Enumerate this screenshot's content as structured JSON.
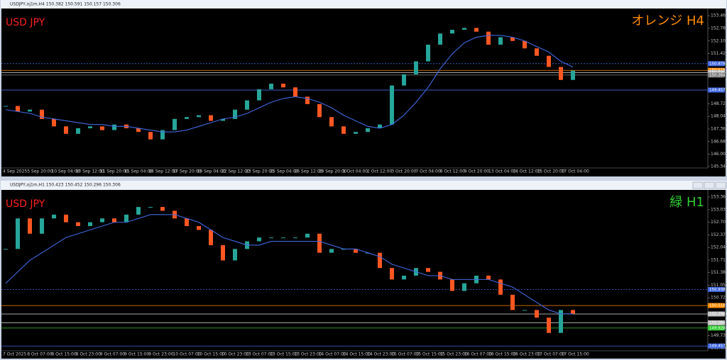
{
  "chart_data": [
    {
      "type": "candlestick",
      "title": "USDJPY,oj1m,H4  150.382 150.591 150.157 150.306",
      "symbol_label": "USD JPY",
      "timeframe_label": "オレンジ H4",
      "timeframe_color": "#ff8c00",
      "up_color": "#26a69a",
      "down_color": "#ff5722",
      "ma_color": "#4169e1",
      "time_labels": [
        "4 Sep 2025",
        "5 Sep 20:00",
        "10 Sep 04:00",
        "10 Sep 12:00",
        "11 Sep 20:00",
        "15 Sep 04:00",
        "16 Sep 12:00",
        "17 Sep 20:00",
        "19 Sep 04:00",
        "22 Sep 12:00",
        "23 Sep 20:00",
        "25 Sep 04:00",
        "26 Sep 12:00",
        "29 Sep 20:00",
        "1 Oct 04:00",
        "2 Oct 12:00",
        "3 Oct 20:00",
        "7 Oct 04:00",
        "8 Oct 12:00",
        "9 Oct 20:00",
        "13 Oct 04:00",
        "14 Oct 12:00",
        "15 Oct 20:00",
        "17 Oct 04:00"
      ],
      "ylim": [
        145.3,
        153.77
      ],
      "yticks": [
        {
          "value": 153.46,
          "label": "153.460"
        },
        {
          "value": 152.78,
          "label": "152.780"
        },
        {
          "value": 152.1,
          "label": "152.100"
        },
        {
          "value": 151.42,
          "label": "151.420"
        },
        {
          "value": 148.72,
          "label": "148.720"
        },
        {
          "value": 148.04,
          "label": "148.040"
        },
        {
          "value": 147.36,
          "label": "147.360"
        },
        {
          "value": 146.68,
          "label": "146.680"
        },
        {
          "value": 146.0,
          "label": "146.000"
        },
        {
          "value": 145.34,
          "label": "145.340"
        }
      ],
      "closes": [
        148.6,
        148.3,
        148.4,
        147.9,
        147.5,
        147.1,
        147.4,
        147.5,
        147.3,
        147.6,
        147.4,
        147.2,
        146.8,
        147.3,
        147.9,
        148.0,
        148.1,
        147.8,
        147.9,
        148.4,
        148.9,
        149.5,
        149.8,
        149.6,
        149.1,
        148.7,
        148.0,
        147.5,
        147.1,
        147.2,
        147.4,
        147.6,
        149.7,
        150.3,
        151.0,
        151.9,
        152.5,
        152.7,
        152.8,
        152.6,
        151.9,
        152.3,
        152.1,
        151.7,
        151.3,
        150.7,
        150.0,
        150.5
      ],
      "ma": [
        148.4,
        148.3,
        148.2,
        148.0,
        147.9,
        147.8,
        147.7,
        147.6,
        147.6,
        147.5,
        147.5,
        147.4,
        147.3,
        147.2,
        147.2,
        147.3,
        147.5,
        147.7,
        147.9,
        148.0,
        148.2,
        148.5,
        148.8,
        149.0,
        149.1,
        149.0,
        148.8,
        148.5,
        148.1,
        147.8,
        147.5,
        147.4,
        147.6,
        148.1,
        148.8,
        149.6,
        150.6,
        151.4,
        152.0,
        152.3,
        152.4,
        152.4,
        152.3,
        152.1,
        151.8,
        151.5,
        151.0,
        150.7
      ],
      "levels": [
        {
          "value": 150.878,
          "color": "#4169e1",
          "style": "dotted"
        },
        {
          "value": 150.518,
          "color": "#ff8c00",
          "style": "solid"
        },
        {
          "value": 150.396,
          "color": "#c0c0c0",
          "style": "solid"
        },
        {
          "value": 150.264,
          "color": "#808080",
          "style": "solid"
        },
        {
          "value": 149.457,
          "color": "#4169e1",
          "style": "solid"
        }
      ]
    },
    {
      "type": "candlestick",
      "title": "USDJPY,oj1m,H1  150.423 150.452 150.296 150.306",
      "symbol_label": "USD JPY",
      "timeframe_label": "緑 H1",
      "timeframe_color": "#32cd32",
      "up_color": "#26a69a",
      "down_color": "#ff5722",
      "ma_color": "#4169e1",
      "time_labels": [
        "7 Oct 2025",
        "8 Oct 07:00",
        "8 Oct 15:00",
        "8 Oct 23:00",
        "9 Oct 07:00",
        "9 Oct 15:00",
        "9 Oct 23:00",
        "10 Oct 07:00",
        "10 Oct 15:00",
        "10 Oct 23:00",
        "13 Oct 07:00",
        "13 Oct 15:00",
        "13 Oct 23:00",
        "14 Oct 07:00",
        "14 Oct 15:00",
        "14 Oct 23:00",
        "15 Oct 07:00",
        "15 Oct 15:00",
        "15 Oct 23:00",
        "16 Oct 07:00",
        "16 Oct 15:00",
        "16 Oct 23:00",
        "17 Oct 07:00",
        "17 Oct 15:00"
      ],
      "ylim": [
        149.35,
        153.51
      ],
      "yticks": [
        {
          "value": 153.36,
          "label": "153.360"
        },
        {
          "value": 153.03,
          "label": "153.030"
        },
        {
          "value": 152.7,
          "label": "152.700"
        },
        {
          "value": 152.37,
          "label": "152.370"
        },
        {
          "value": 152.04,
          "label": "152.040"
        },
        {
          "value": 151.71,
          "label": "151.710"
        },
        {
          "value": 151.38,
          "label": "151.380"
        },
        {
          "value": 151.05,
          "label": "151.050"
        },
        {
          "value": 150.72,
          "label": "150.720"
        },
        {
          "value": 149.73,
          "label": "149.730"
        },
        {
          "value": 149.4,
          "label": "149.400"
        }
      ],
      "closes": [
        152.0,
        152.8,
        152.4,
        152.8,
        152.9,
        152.7,
        152.6,
        152.7,
        152.8,
        152.7,
        152.9,
        153.1,
        153.1,
        153.0,
        152.8,
        152.6,
        152.5,
        152.1,
        151.7,
        152.0,
        152.2,
        152.3,
        152.3,
        152.3,
        152.3,
        152.4,
        151.9,
        152.0,
        152.0,
        151.9,
        151.9,
        151.5,
        151.2,
        151.3,
        151.5,
        151.4,
        151.2,
        150.9,
        151.1,
        151.3,
        151.2,
        150.8,
        150.4,
        150.4,
        150.2,
        149.8,
        150.4,
        150.3
      ],
      "ma": [
        151.1,
        151.4,
        151.7,
        151.9,
        152.1,
        152.3,
        152.4,
        152.5,
        152.6,
        152.7,
        152.7,
        152.8,
        152.9,
        152.9,
        152.9,
        152.8,
        152.7,
        152.5,
        152.3,
        152.2,
        152.1,
        152.1,
        152.2,
        152.2,
        152.2,
        152.2,
        152.2,
        152.1,
        152.0,
        152.0,
        151.9,
        151.8,
        151.6,
        151.5,
        151.4,
        151.3,
        151.3,
        151.2,
        151.2,
        151.2,
        151.2,
        151.1,
        151.0,
        150.8,
        150.6,
        150.4,
        150.3,
        150.3
      ],
      "levels": [
        {
          "value": 150.938,
          "color": "#4169e1",
          "style": "dotted"
        },
        {
          "value": 150.518,
          "color": "#ff8c00",
          "style": "solid"
        },
        {
          "value": 150.296,
          "color": "#c0c0c0",
          "style": "solid"
        },
        {
          "value": 150.064,
          "color": "#c0c0c0",
          "style": "solid"
        },
        {
          "value": 149.928,
          "color": "#32cd32",
          "style": "solid"
        },
        {
          "value": 149.457,
          "color": "#4169e1",
          "style": "solid"
        }
      ]
    }
  ]
}
